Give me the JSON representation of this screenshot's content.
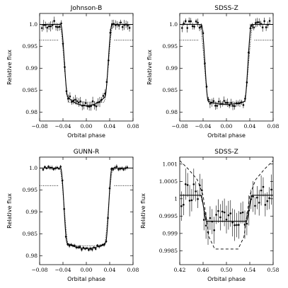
{
  "chart_data": [
    {
      "type": "scatter",
      "title": "Johnson-B",
      "xlabel": "Orbital phase",
      "ylabel": "Relative flux",
      "xlim": [
        -0.08,
        0.08
      ],
      "ylim": [
        0.978,
        1.0025
      ],
      "xticks": [
        -0.08,
        -0.04,
        0.0,
        0.04,
        0.08
      ],
      "xtick_labels": [
        "−0.08",
        "−0.04",
        "0.00",
        "0.04",
        "0.08"
      ],
      "yticks": [
        0.98,
        0.985,
        0.99,
        0.995,
        1.0
      ],
      "ytick_labels": [
        "0.98",
        "0.985",
        "0.99",
        "0.995",
        "1.0"
      ],
      "grid": false,
      "transit": {
        "half_width": 0.044,
        "t12": 0.012,
        "depth": 0.0185,
        "limb": 0.35
      },
      "model_dotted": {
        "half_width": 0.046,
        "t12": 0.016,
        "depth": 0.0177,
        "limb": 0.0,
        "baseline": 1.0
      },
      "dotted_hline": {
        "value": 0.9964,
        "segments": [
          [
            -0.08,
            -0.048
          ],
          [
            0.048,
            0.08
          ]
        ]
      },
      "points": {
        "x_start": -0.076,
        "x_end": 0.074,
        "step": 0.003,
        "scatter": 0.0007,
        "err": 0.0009
      }
    },
    {
      "type": "scatter",
      "title": "SDSS-Z",
      "xlabel": "Orbital phase",
      "ylabel": "Relative flux",
      "xlim": [
        -0.08,
        0.08
      ],
      "ylim": [
        0.978,
        1.0025
      ],
      "xticks": [
        -0.08,
        -0.04,
        0.0,
        0.04,
        0.08
      ],
      "xtick_labels": [
        "−0.08",
        "−0.04",
        "0.00",
        "0.04",
        "0.08"
      ],
      "yticks": [
        0.98,
        0.985,
        0.99,
        0.995,
        1.0
      ],
      "ytick_labels": [
        "0.98",
        "0.985",
        "0.99",
        "0.995",
        "1.0"
      ],
      "grid": false,
      "transit": {
        "half_width": 0.043,
        "t12": 0.012,
        "depth": 0.0182,
        "limb": 0.12
      },
      "model_dotted": {
        "half_width": 0.046,
        "t12": 0.016,
        "depth": 0.0177,
        "limb": 0.0,
        "baseline": 1.0
      },
      "dotted_hline": {
        "value": 0.9964,
        "segments": [
          [
            -0.08,
            -0.048
          ],
          [
            0.048,
            0.08
          ]
        ]
      },
      "points": {
        "x_start": -0.076,
        "x_end": 0.074,
        "step": 0.003,
        "scatter": 0.0007,
        "err": 0.0008
      }
    },
    {
      "type": "scatter",
      "title": "GUNN-R",
      "xlabel": "Orbital phase",
      "ylabel": "Relative flux",
      "xlim": [
        -0.08,
        0.08
      ],
      "ylim": [
        0.978,
        1.0025
      ],
      "xticks": [
        -0.08,
        -0.04,
        0.0,
        0.04,
        0.08
      ],
      "xtick_labels": [
        "−0.08",
        "−0.04",
        "0.00",
        "0.04",
        "0.08"
      ],
      "yticks": [
        0.98,
        0.985,
        0.99,
        0.995,
        1.0
      ],
      "ytick_labels": [
        "0.98",
        "0.985",
        "0.99",
        "0.995",
        "1.0"
      ],
      "grid": false,
      "transit": {
        "half_width": 0.044,
        "t12": 0.011,
        "depth": 0.0183,
        "limb": 0.2
      },
      "model_dotted": {
        "half_width": 0.046,
        "t12": 0.016,
        "depth": 0.0177,
        "limb": 0.0,
        "baseline": 1.0
      },
      "dotted_hline": {
        "value": 0.996,
        "segments": [
          [
            -0.08,
            -0.048
          ],
          [
            0.048,
            0.08
          ]
        ]
      },
      "points": {
        "x_start": -0.074,
        "x_end": 0.072,
        "step": 0.003,
        "scatter": 0.0003,
        "err": 0.0004
      }
    },
    {
      "type": "scatter",
      "title": "SDSS-Z",
      "xlabel": "Orbital phase",
      "ylabel": "Relative flux",
      "xlim": [
        0.42,
        0.58
      ],
      "ylim": [
        0.9981,
        1.0012
      ],
      "xticks": [
        0.42,
        0.46,
        0.5,
        0.54,
        0.58
      ],
      "xtick_labels": [
        "0.42",
        "0.46",
        "0.50",
        "0.54",
        "0.58"
      ],
      "yticks": [
        0.9985,
        0.999,
        0.9995,
        1.0,
        1.0005,
        1.001
      ],
      "ytick_labels": [
        "0.9985",
        "0.999",
        "0.9995",
        "1",
        "1.0005",
        "1.001"
      ],
      "grid": false,
      "eclipse_model": {
        "center": 0.5,
        "half_width": 0.044,
        "t12": 0.01,
        "baseline": 1.0001,
        "depth": 0.00075
      },
      "dashed_curve": {
        "x": [
          0.42,
          0.435,
          0.45,
          0.46,
          0.47,
          0.48,
          0.5,
          0.52,
          0.53,
          0.54,
          0.55,
          0.565,
          0.58
        ],
        "y": [
          1.0011,
          1.00085,
          1.00055,
          1.0001,
          0.9989,
          0.99855,
          0.99855,
          0.99855,
          0.9989,
          1.0001,
          1.00055,
          1.00085,
          1.0011
        ]
      },
      "dotted_curve": {
        "x": [
          0.42,
          0.456,
          0.467,
          0.533,
          0.544,
          0.58
        ],
        "y": [
          1.0001,
          1.0001,
          0.99935,
          0.99935,
          1.0001,
          1.0001
        ]
      },
      "points": {
        "x_start": 0.423,
        "x_end": 0.577,
        "step": 0.0035,
        "scatter": 0.00028,
        "err": 0.00035
      }
    }
  ]
}
